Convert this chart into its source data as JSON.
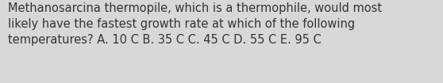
{
  "text": "Methanosarcina thermopile, which is a thermophile, would most\nlikely have the fastest growth rate at which of the following\ntemperatures? A. 10 C B. 35 C C. 45 C D. 55 C E. 95 C",
  "background_color": "#d8d8d8",
  "text_color": "#333333",
  "font_size": 10.5,
  "font_family": "DejaVu Sans",
  "fig_width": 5.58,
  "fig_height": 1.05,
  "dpi": 100
}
